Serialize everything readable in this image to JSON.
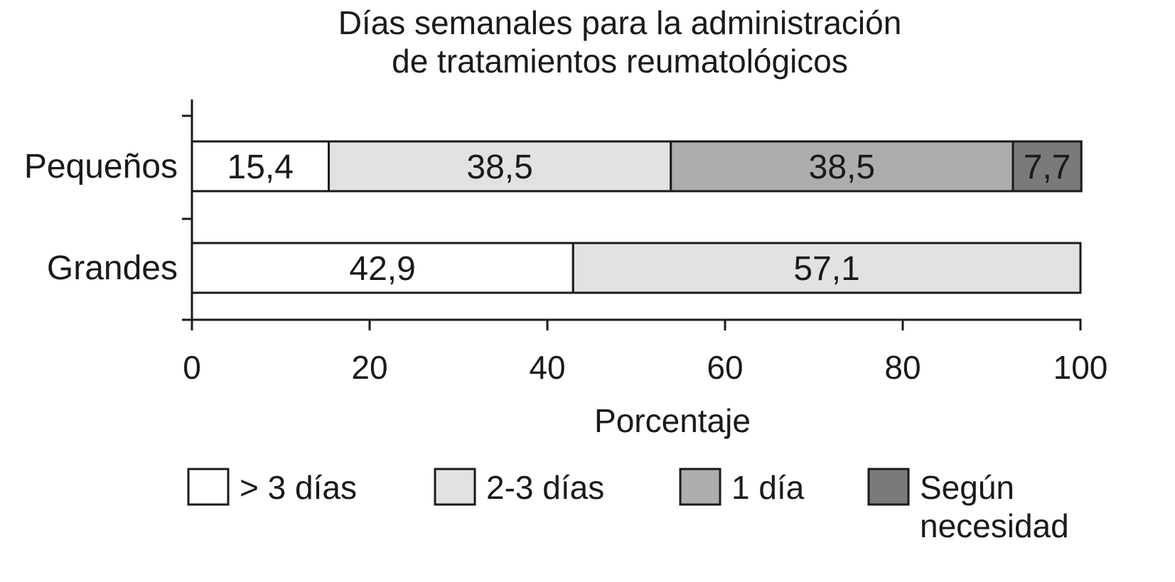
{
  "chart_data": {
    "type": "bar",
    "orientation": "horizontal",
    "stacked": true,
    "title": [
      "Días semanales para la administración",
      "de tratamientos reumatológicos"
    ],
    "xlabel": "Porcentaje",
    "ylabel": "",
    "xlim": [
      0,
      100
    ],
    "xticks": [
      0,
      20,
      40,
      60,
      80,
      100
    ],
    "categories": [
      "Pequeños",
      "Grandes"
    ],
    "series": [
      {
        "name": "> 3 días",
        "color": "#ffffff",
        "label_color": "#1a1a1a",
        "values": [
          15.4,
          42.9
        ],
        "labels": [
          "15,4",
          "42,9"
        ]
      },
      {
        "name": "2-3 días",
        "color": "#e2e2e2",
        "label_color": "#1a1a1a",
        "values": [
          38.5,
          57.1
        ],
        "labels": [
          "38,5",
          "57,1"
        ]
      },
      {
        "name": "1 día",
        "color": "#adadad",
        "label_color": "#1a1a1a",
        "values": [
          38.5,
          0
        ],
        "labels": [
          "38,5",
          ""
        ]
      },
      {
        "name": "Según necesidad",
        "name_lines": [
          "Según",
          "necesidad"
        ],
        "color": "#7a7a7a",
        "label_color": "#ffffff",
        "values": [
          7.7,
          0
        ],
        "labels": [
          "7,7",
          ""
        ]
      }
    ],
    "legend": "bottom",
    "grid": false
  }
}
